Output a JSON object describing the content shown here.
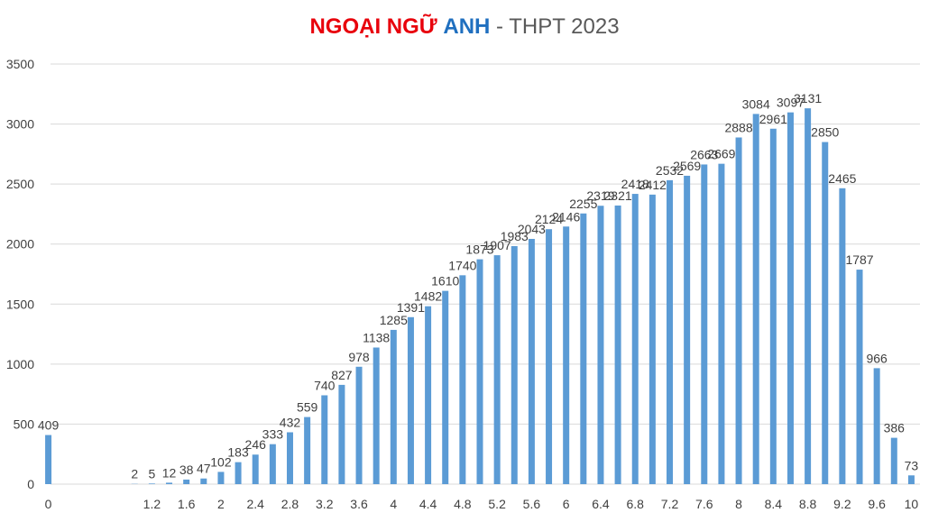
{
  "title": {
    "part1": "NGOẠI NGỮ",
    "part2": "ANH",
    "part3": "- THPT 2023"
  },
  "colors": {
    "bar": "#5b9bd5",
    "grid": "#d9d9d9",
    "text": "#404040",
    "title_red": "#e8000b",
    "title_blue": "#1f6fbf"
  },
  "chart_data": {
    "type": "bar",
    "title": "NGOẠI NGỮ ANH - THPT 2023",
    "xlabel": "",
    "ylabel": "",
    "ylim": [
      0,
      3500
    ],
    "y_ticks": [
      0,
      500,
      1000,
      1500,
      2000,
      2500,
      3000,
      3500
    ],
    "grid": true,
    "legend": "none",
    "categories": [
      "0",
      "0.2",
      "0.4",
      "0.6",
      "0.8",
      "1",
      "1.2",
      "1.4",
      "1.6",
      "1.8",
      "2",
      "2.2",
      "2.4",
      "2.6",
      "2.8",
      "3",
      "3.2",
      "3.4",
      "3.6",
      "3.8",
      "4",
      "4.2",
      "4.4",
      "4.6",
      "4.8",
      "5",
      "5.2",
      "5.4",
      "5.6",
      "5.8",
      "6",
      "6.2",
      "6.4",
      "6.6",
      "6.8",
      "7",
      "7.2",
      "7.4",
      "7.6",
      "7.8",
      "8",
      "8.2",
      "8.4",
      "8.6",
      "8.8",
      "9",
      "9.2",
      "9.4",
      "9.6",
      "9.8",
      "10"
    ],
    "shown_x_labels": [
      "0",
      "1.2",
      "1.6",
      "2",
      "2.4",
      "2.8",
      "3.2",
      "3.6",
      "4",
      "4.4",
      "4.8",
      "5.2",
      "5.6",
      "6",
      "6.4",
      "6.8",
      "7.2",
      "7.6",
      "8",
      "8.4",
      "8.8",
      "9.2",
      "9.6",
      "10"
    ],
    "values": [
      409,
      null,
      null,
      null,
      null,
      2,
      5,
      12,
      38,
      47,
      102,
      183,
      246,
      333,
      432,
      559,
      740,
      827,
      978,
      1138,
      1285,
      1391,
      1482,
      1610,
      1740,
      1873,
      1907,
      1983,
      2043,
      2124,
      2146,
      2255,
      2319,
      2321,
      2418,
      2412,
      2532,
      2569,
      2663,
      2669,
      2888,
      3084,
      2961,
      3097,
      3131,
      2850,
      2465,
      1787,
      966,
      386,
      73
    ]
  }
}
